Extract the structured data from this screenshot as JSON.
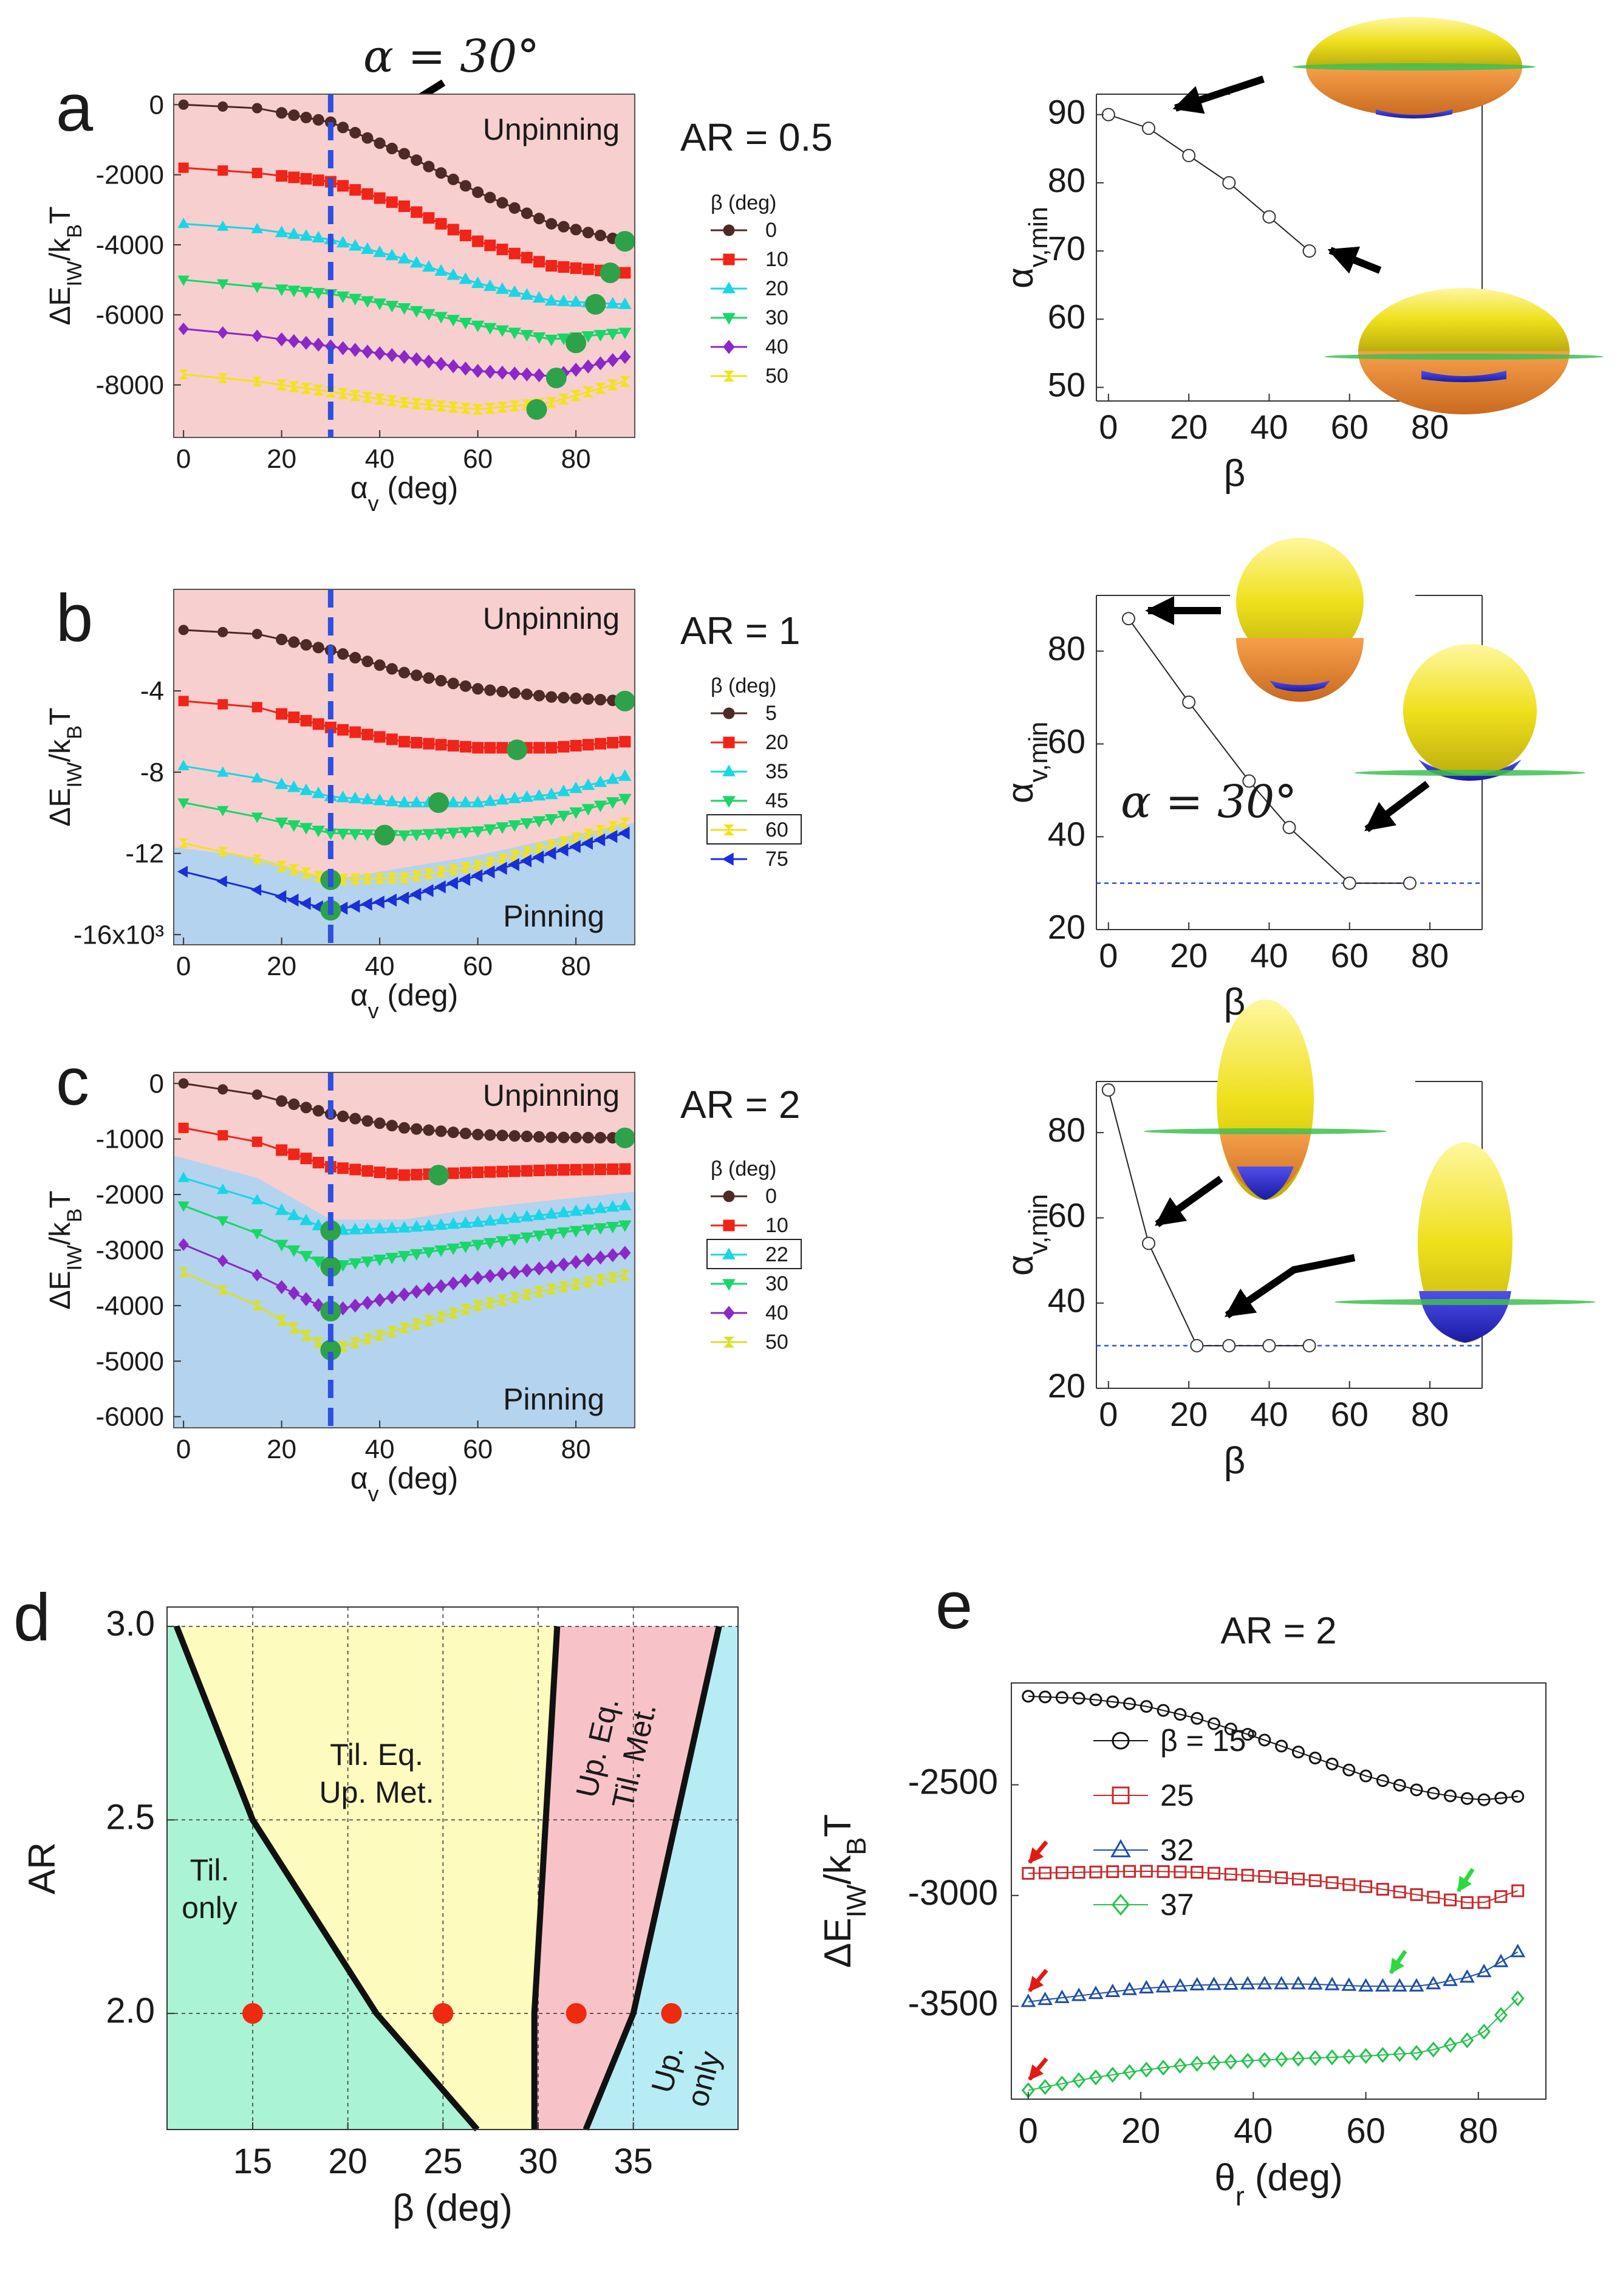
{
  "figure": {
    "panel_letters": [
      "a",
      "b",
      "c",
      "d",
      "e"
    ],
    "annotation_alpha": "α = 30°",
    "colors": {
      "unpinning_bg": "#f7cfcf",
      "pinning_bg": "#b4d3ef",
      "dashed_line": "#2e4fe0",
      "min_marker": "#2da24a",
      "yellow": "#f0e21a",
      "orange": "#e88a32",
      "blue": "#2a2ad0",
      "green": "#3fbf4f"
    }
  },
  "chart_data": [
    {
      "id": "a",
      "type": "line",
      "title": "AR = 0.5",
      "xlabel": "αv (deg)",
      "ylabel": "ΔEIW/kBT",
      "xlim": [
        -2,
        92
      ],
      "ylim": [
        -9500,
        300
      ],
      "xticks": [
        "0",
        "20",
        "40",
        "60",
        "80"
      ],
      "yticks": [
        "0",
        "-2000",
        "-4000",
        "-6000",
        "-8000"
      ],
      "region_labels": [
        "Unpinning"
      ],
      "legend_title": "β (deg)",
      "x": [
        0,
        15,
        30,
        45,
        60,
        75,
        90
      ],
      "series": [
        {
          "name": "0",
          "color": "#4d2a26",
          "marker": "circle",
          "values": [
            0,
            -100,
            -500,
            -1400,
            -2500,
            -3400,
            -3900
          ],
          "min": [
            90,
            -3900
          ]
        },
        {
          "name": "10",
          "color": "#f02418",
          "marker": "square",
          "values": [
            -1800,
            -1950,
            -2200,
            -2900,
            -3900,
            -4600,
            -4800
          ],
          "min": [
            87,
            -4800
          ]
        },
        {
          "name": "20",
          "color": "#19d6e6",
          "marker": "triangle",
          "values": [
            -3400,
            -3550,
            -3850,
            -4400,
            -5100,
            -5600,
            -5700
          ],
          "min": [
            84,
            -5700
          ]
        },
        {
          "name": "30",
          "color": "#19d669",
          "marker": "triangle-down",
          "values": [
            -5000,
            -5200,
            -5400,
            -5800,
            -6300,
            -6700,
            -6500
          ],
          "min": [
            80,
            -6800
          ]
        },
        {
          "name": "40",
          "color": "#8a28c8",
          "marker": "diamond",
          "values": [
            -6400,
            -6600,
            -6900,
            -7200,
            -7600,
            -7750,
            -7200
          ],
          "min": [
            76,
            -7800
          ]
        },
        {
          "name": "50",
          "color": "#f2e21c",
          "marker": "x",
          "values": [
            -7700,
            -7900,
            -8200,
            -8500,
            -8700,
            -8500,
            -7900
          ],
          "min": [
            72,
            -8700
          ]
        }
      ]
    },
    {
      "id": "a-inset",
      "type": "scatter",
      "title": "",
      "xlabel": "β",
      "ylabel": "αv,min",
      "xlim": [
        -3,
        93
      ],
      "ylim": [
        48,
        93
      ],
      "xticks": [
        "0",
        "20",
        "40",
        "60",
        "80"
      ],
      "yticks": [
        "50",
        "60",
        "70",
        "80",
        "90"
      ],
      "x": [
        0,
        10,
        20,
        30,
        40,
        50
      ],
      "y": [
        90,
        88,
        84,
        80,
        75,
        70
      ]
    },
    {
      "id": "b",
      "type": "line",
      "title": "AR = 1",
      "xlabel": "αv (deg)",
      "ylabel": "ΔEIW/kBT",
      "xlim": [
        -2,
        92
      ],
      "ylim": [
        -16500,
        1000
      ],
      "xticks": [
        "0",
        "20",
        "40",
        "60",
        "80"
      ],
      "yticks": [
        "-4",
        "-8",
        "-12",
        "-16x10³"
      ],
      "region_labels": [
        "Unpinning",
        "Pinning"
      ],
      "legend_title": "β (deg)",
      "x": [
        0,
        15,
        30,
        45,
        60,
        75,
        90
      ],
      "series": [
        {
          "name": "5",
          "color": "#4d2a26",
          "marker": "circle",
          "values": [
            -1000,
            -1200,
            -2000,
            -3100,
            -3900,
            -4300,
            -4500
          ],
          "min": [
            90,
            -4500
          ]
        },
        {
          "name": "20",
          "color": "#f02418",
          "marker": "square",
          "values": [
            -4500,
            -4800,
            -5800,
            -6500,
            -6800,
            -6800,
            -6500
          ],
          "min": [
            68,
            -6900
          ]
        },
        {
          "name": "35",
          "color": "#19d6e6",
          "marker": "triangle",
          "values": [
            -7700,
            -8300,
            -9200,
            -9500,
            -9500,
            -9100,
            -8200
          ],
          "min": [
            52,
            -9500
          ]
        },
        {
          "name": "45",
          "color": "#19d669",
          "marker": "triangle-down",
          "values": [
            -9500,
            -10200,
            -11000,
            -11100,
            -10900,
            -10300,
            -9300
          ],
          "min": [
            41,
            -11100
          ]
        },
        {
          "name": "60",
          "color": "#f2e21c",
          "marker": "x",
          "values": [
            -11500,
            -12300,
            -13300,
            -13200,
            -12600,
            -11600,
            -10500
          ],
          "min": [
            30,
            -13300
          ]
        },
        {
          "name": "75",
          "color": "#1a2fd6",
          "marker": "triangle-left",
          "values": [
            -12900,
            -13800,
            -14800,
            -14200,
            -13100,
            -12000,
            -11000
          ],
          "min": [
            30,
            -14800
          ]
        }
      ],
      "legend_highlight": "60"
    },
    {
      "id": "b-inset",
      "type": "scatter",
      "title": "",
      "xlabel": "β",
      "ylabel": "αv,min",
      "xlim": [
        -3,
        93
      ],
      "ylim": [
        20,
        92
      ],
      "xticks": [
        "0",
        "20",
        "40",
        "60",
        "80"
      ],
      "yticks": [
        "20",
        "40",
        "60",
        "80"
      ],
      "x": [
        5,
        20,
        35,
        45,
        60,
        75
      ],
      "y": [
        87,
        69,
        52,
        42,
        30,
        30
      ],
      "reference_line": 30
    },
    {
      "id": "c",
      "type": "line",
      "title": "AR = 2",
      "xlabel": "αv (deg)",
      "ylabel": "ΔEIW/kBT",
      "xlim": [
        -2,
        92
      ],
      "ylim": [
        -6200,
        200
      ],
      "xticks": [
        "0",
        "20",
        "40",
        "60",
        "80"
      ],
      "yticks": [
        "0",
        "-1000",
        "-2000",
        "-3000",
        "-4000",
        "-5000",
        "-6000"
      ],
      "region_labels": [
        "Unpinning",
        "Pinning"
      ],
      "legend_title": "β (deg)",
      "x": [
        0,
        15,
        30,
        45,
        60,
        75,
        90
      ],
      "series": [
        {
          "name": "0",
          "color": "#4d2a26",
          "marker": "circle",
          "values": [
            0,
            -200,
            -550,
            -800,
            -920,
            -970,
            -980
          ],
          "min": [
            90,
            -980
          ]
        },
        {
          "name": "10",
          "color": "#f02418",
          "marker": "square",
          "values": [
            -800,
            -1050,
            -1500,
            -1650,
            -1600,
            -1560,
            -1540
          ],
          "min": [
            52,
            -1650
          ]
        },
        {
          "name": "22",
          "color": "#19d6e6",
          "marker": "triangle",
          "values": [
            -1700,
            -2100,
            -2650,
            -2600,
            -2500,
            -2350,
            -2200
          ],
          "min": [
            30,
            -2650
          ]
        },
        {
          "name": "30",
          "color": "#19d669",
          "marker": "triangle-down",
          "values": [
            -2200,
            -2700,
            -3300,
            -3100,
            -2900,
            -2700,
            -2550
          ],
          "min": [
            30,
            -3300
          ]
        },
        {
          "name": "40",
          "color": "#8a28c8",
          "marker": "diamond",
          "values": [
            -2900,
            -3450,
            -4100,
            -3800,
            -3500,
            -3300,
            -3050
          ],
          "min": [
            30,
            -4100
          ]
        },
        {
          "name": "50",
          "color": "#d8e02a",
          "marker": "x",
          "values": [
            -3400,
            -4000,
            -4800,
            -4400,
            -4000,
            -3700,
            -3450
          ],
          "min": [
            30,
            -4800
          ]
        }
      ],
      "legend_highlight": "22"
    },
    {
      "id": "c-inset",
      "type": "scatter",
      "title": "",
      "xlabel": "β",
      "ylabel": "αv,min",
      "xlim": [
        -3,
        93
      ],
      "ylim": [
        20,
        92
      ],
      "xticks": [
        "0",
        "20",
        "40",
        "60",
        "80"
      ],
      "yticks": [
        "20",
        "40",
        "60",
        "80"
      ],
      "x": [
        0,
        10,
        22,
        30,
        40,
        50
      ],
      "y": [
        90,
        54,
        30,
        30,
        30,
        30
      ],
      "reference_line": 30
    },
    {
      "id": "d",
      "type": "area",
      "title": "",
      "xlabel": "β (deg)",
      "ylabel": "AR",
      "xlim": [
        10.5,
        40.5
      ],
      "ylim": [
        1.7,
        3.05
      ],
      "xticks": [
        "15",
        "20",
        "25",
        "30",
        "35"
      ],
      "yticks": [
        "2.0",
        "2.5",
        "3.0"
      ],
      "regions": [
        {
          "label": [
            "Til.",
            "only"
          ],
          "color": "#aaf3d4"
        },
        {
          "label": [
            "Til. Eq.",
            "Up. Met."
          ],
          "color": "#fefbbe"
        },
        {
          "label": [
            "Up. Eq.",
            "Til. Met."
          ],
          "color": "#f8c3c8"
        },
        {
          "label": [
            "Up.",
            "only"
          ],
          "color": "#b7ecf5"
        }
      ],
      "boundary_1": [
        [
          11.0,
          3.0
        ],
        [
          15.0,
          2.5
        ],
        [
          21.5,
          2.0
        ],
        [
          26.8,
          1.7
        ]
      ],
      "boundary_2": [
        [
          31.0,
          3.0
        ],
        [
          29.8,
          2.0
        ],
        [
          29.8,
          1.7
        ]
      ],
      "boundary_3": [
        [
          39.5,
          3.0
        ],
        [
          35.0,
          2.0
        ],
        [
          32.5,
          1.7
        ]
      ],
      "points": {
        "x": [
          15,
          25,
          32,
          37
        ],
        "y": [
          2.0,
          2.0,
          2.0,
          2.0
        ],
        "color": "#ee2a10"
      }
    },
    {
      "id": "e",
      "type": "line",
      "title": "AR = 2",
      "xlabel": "θr (deg)",
      "ylabel": "ΔEIW/kBT",
      "xlim": [
        -3,
        92
      ],
      "ylim": [
        -3920,
        -2040
      ],
      "xticks": [
        "0",
        "20",
        "40",
        "60",
        "80"
      ],
      "yticks": [
        "-2500",
        "-3000",
        "-3500"
      ],
      "x": [
        0,
        10,
        20,
        30,
        40,
        50,
        60,
        70,
        80,
        88
      ],
      "series": [
        {
          "name": "β = 15°",
          "color": "#111111",
          "marker": "circle",
          "values": [
            -2100,
            -2110,
            -2140,
            -2200,
            -2280,
            -2370,
            -2460,
            -2530,
            -2570,
            -2550
          ]
        },
        {
          "name": "25",
          "color": "#c8282a",
          "marker": "square",
          "values": [
            -2900,
            -2895,
            -2890,
            -2895,
            -2910,
            -2930,
            -2960,
            -3000,
            -3040,
            -2970
          ]
        },
        {
          "name": "32",
          "color": "#1f4ea8",
          "marker": "triangle",
          "values": [
            -3480,
            -3450,
            -3420,
            -3405,
            -3400,
            -3400,
            -3410,
            -3410,
            -3360,
            -3240
          ]
        },
        {
          "name": "37",
          "color": "#22c24a",
          "marker": "diamond",
          "values": [
            -3880,
            -3830,
            -3790,
            -3760,
            -3745,
            -3735,
            -3725,
            -3710,
            -3640,
            -3440
          ]
        }
      ],
      "arrows": {
        "red_at": [
          [
            0,
            -2900
          ],
          [
            0,
            -3480
          ],
          [
            0,
            -3880
          ]
        ],
        "green_at": [
          [
            76,
            -3040
          ],
          [
            64,
            -3410
          ]
        ]
      }
    }
  ]
}
